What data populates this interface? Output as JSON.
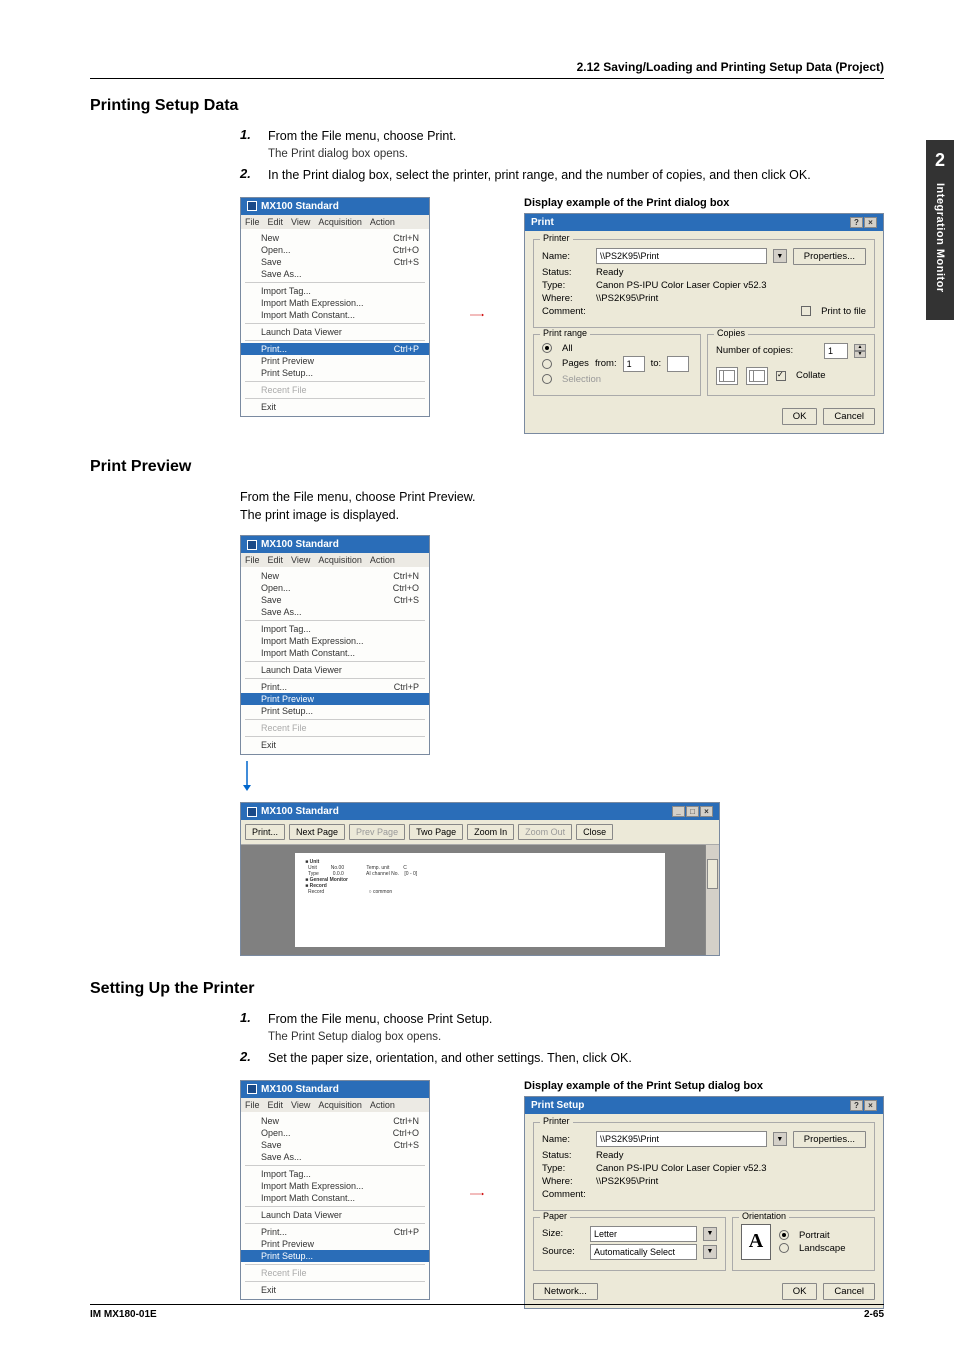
{
  "header": {
    "section": "2.12  Saving/Loading and Printing Setup Data (Project)"
  },
  "sideTab": {
    "chapter": "2",
    "label": "Integration Monitor"
  },
  "s1": {
    "title": "Printing Setup Data",
    "step1_num": "1.",
    "step1_main": "From the File menu, choose Print.",
    "step1_sub": "The Print dialog box opens.",
    "step2_num": "2.",
    "step2_main": "In the Print dialog box, select the printer, print range, and the number of copies, and then click OK.",
    "caption": "Display example of the Print dialog box"
  },
  "s2": {
    "title": "Print Preview",
    "line1": "From the File menu, choose Print Preview.",
    "line2": "The print image is displayed."
  },
  "s3": {
    "title": "Setting Up the Printer",
    "step1_num": "1.",
    "step1_main": "From the File menu, choose Print Setup.",
    "step1_sub": "The Print Setup dialog box opens.",
    "step2_num": "2.",
    "step2_main": "Set the paper size, orientation, and other settings. Then, click OK.",
    "caption": "Display example of the Print Setup dialog box"
  },
  "menu": {
    "title": "MX100 Standard",
    "bar": [
      "File",
      "Edit",
      "View",
      "Acquisition",
      "Action"
    ],
    "items": [
      {
        "l": "New",
        "s": "Ctrl+N"
      },
      {
        "l": "Open...",
        "s": "Ctrl+O"
      },
      {
        "l": "Save",
        "s": "Ctrl+S"
      },
      {
        "l": "Save As...",
        "s": ""
      }
    ],
    "items2": [
      {
        "l": "Import Tag...",
        "s": ""
      },
      {
        "l": "Import Math Expression...",
        "s": ""
      },
      {
        "l": "Import Math Constant...",
        "s": ""
      }
    ],
    "items3": [
      {
        "l": "Launch Data Viewer",
        "s": ""
      }
    ],
    "items4": [
      {
        "l": "Print...",
        "s": "Ctrl+P"
      },
      {
        "l": "Print Preview",
        "s": ""
      },
      {
        "l": "Print Setup...",
        "s": ""
      }
    ],
    "recent": "Recent File",
    "exit": "Exit"
  },
  "printDlg": {
    "title": "Print",
    "printer_legend": "Printer",
    "name_label": "Name:",
    "name_value": "\\\\PS2K95\\Print",
    "properties": "Properties...",
    "status_label": "Status:",
    "status_value": "Ready",
    "type_label": "Type:",
    "type_value": "Canon PS-IPU Color Laser Copier v52.3",
    "where_label": "Where:",
    "where_value": "\\\\PS2K95\\Print",
    "comment_label": "Comment:",
    "print_to_file": "Print to file",
    "range_legend": "Print range",
    "all": "All",
    "pages": "Pages",
    "from": "from:",
    "from_v": "1",
    "to": "to:",
    "to_v": "",
    "selection": "Selection",
    "copies_legend": "Copies",
    "numcopies": "Number of copies:",
    "numcopies_v": "1",
    "collate": "Collate",
    "ok": "OK",
    "cancel": "Cancel"
  },
  "previewWin": {
    "title": "MX100 Standard",
    "btns": {
      "print": "Print...",
      "next": "Next Page",
      "prev": "Prev Page",
      "two": "Two Page",
      "zin": "Zoom In",
      "zout": "Zoom Out",
      "close": "Close"
    }
  },
  "setupDlg": {
    "title": "Print Setup",
    "printer_legend": "Printer",
    "name_label": "Name:",
    "name_value": "\\\\PS2K95\\Print",
    "properties": "Properties...",
    "status_label": "Status:",
    "status_value": "Ready",
    "type_label": "Type:",
    "type_value": "Canon PS-IPU Color Laser Copier v52.3",
    "where_label": "Where:",
    "where_value": "\\\\PS2K95\\Print",
    "comment_label": "Comment:",
    "paper_legend": "Paper",
    "size_label": "Size:",
    "size_value": "Letter",
    "source_label": "Source:",
    "source_value": "Automatically Select",
    "orient_legend": "Orientation",
    "portrait": "Portrait",
    "landscape": "Landscape",
    "network": "Network...",
    "ok": "OK",
    "cancel": "Cancel"
  },
  "footer": {
    "left": "IM MX180-01E",
    "right": "2-65"
  }
}
